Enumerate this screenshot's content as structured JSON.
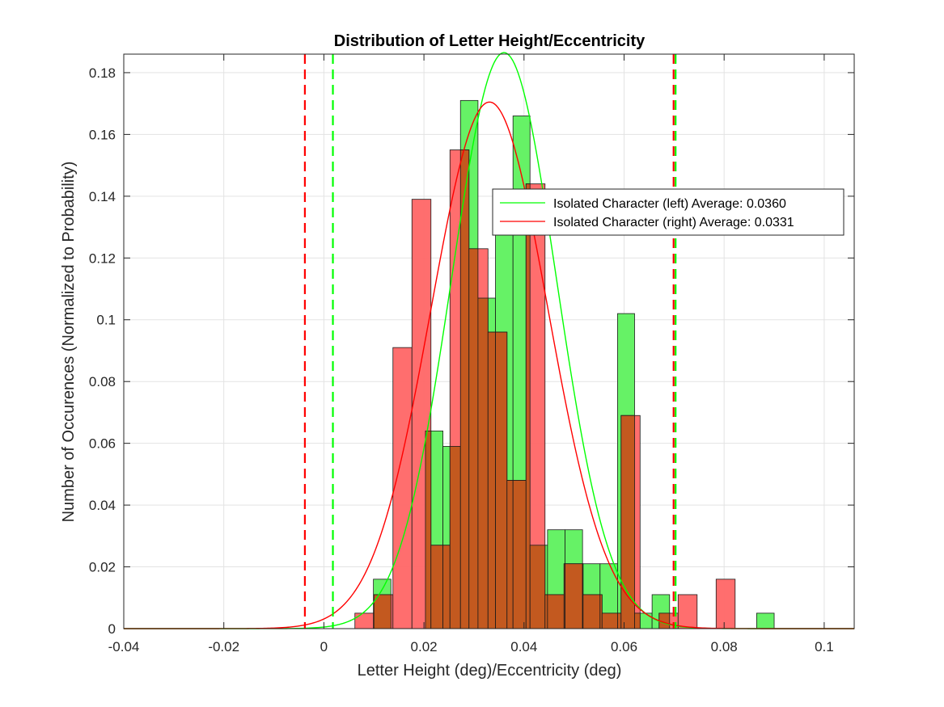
{
  "chart_data": {
    "type": "histogram",
    "title": "Distribution of Letter Height/Eccentricity",
    "xlabel": "Letter Height (deg)/Eccentricity (deg)",
    "ylabel": "Number of Occurences (Normalized to Probability)",
    "xlim": [
      -0.04,
      0.106
    ],
    "ylim": [
      0,
      0.186
    ],
    "xticks": [
      -0.04,
      -0.02,
      0,
      0.02,
      0.04,
      0.06,
      0.08,
      0.1
    ],
    "xtick_labels": [
      "-0.04",
      "-0.02",
      "0",
      "0.02",
      "0.04",
      "0.06",
      "0.08",
      "0.1"
    ],
    "yticks": [
      0,
      0.02,
      0.04,
      0.06,
      0.08,
      0.1,
      0.12,
      0.14,
      0.16,
      0.18
    ],
    "ytick_labels": [
      "0",
      "0.02",
      "0.04",
      "0.06",
      "0.08",
      "0.1",
      "0.12",
      "0.14",
      "0.16",
      "0.18"
    ],
    "grid": true,
    "legend_position": "top-right",
    "series": [
      {
        "name": "Isolated Character (left) Average: 0.0360",
        "color": "#00ff00",
        "bar_fill": "#66f266",
        "mean": 0.036,
        "std": 0.0105,
        "curve_peak": 0.1865,
        "threshold_lines": [
          0.0018,
          0.0703
        ],
        "bins": [
          {
            "x0": 0.0099,
            "x1": 0.0134,
            "v": 0.016
          },
          {
            "x0": 0.0134,
            "x1": 0.0169,
            "v": 0.0
          },
          {
            "x0": 0.0169,
            "x1": 0.0203,
            "v": 0.0
          },
          {
            "x0": 0.0203,
            "x1": 0.0238,
            "v": 0.064
          },
          {
            "x0": 0.0238,
            "x1": 0.0273,
            "v": 0.059
          },
          {
            "x0": 0.0273,
            "x1": 0.0308,
            "v": 0.171
          },
          {
            "x0": 0.0308,
            "x1": 0.0343,
            "v": 0.107
          },
          {
            "x0": 0.0343,
            "x1": 0.0378,
            "v": 0.128
          },
          {
            "x0": 0.0378,
            "x1": 0.0412,
            "v": 0.166
          },
          {
            "x0": 0.0412,
            "x1": 0.0447,
            "v": 0.027
          },
          {
            "x0": 0.0447,
            "x1": 0.0482,
            "v": 0.032
          },
          {
            "x0": 0.0482,
            "x1": 0.0517,
            "v": 0.032
          },
          {
            "x0": 0.0517,
            "x1": 0.0552,
            "v": 0.021
          },
          {
            "x0": 0.0552,
            "x1": 0.0587,
            "v": 0.021
          },
          {
            "x0": 0.0587,
            "x1": 0.0621,
            "v": 0.102
          },
          {
            "x0": 0.0621,
            "x1": 0.0656,
            "v": 0.005
          },
          {
            "x0": 0.0656,
            "x1": 0.0691,
            "v": 0.011
          },
          {
            "x0": 0.0691,
            "x1": 0.0726,
            "v": 0.0
          },
          {
            "x0": 0.0726,
            "x1": 0.0761,
            "v": 0.0
          },
          {
            "x0": 0.0761,
            "x1": 0.0796,
            "v": 0.0
          },
          {
            "x0": 0.0796,
            "x1": 0.083,
            "v": 0.0
          },
          {
            "x0": 0.083,
            "x1": 0.0865,
            "v": 0.0
          },
          {
            "x0": 0.0865,
            "x1": 0.09,
            "v": 0.005
          }
        ]
      },
      {
        "name": "Isolated Character (right) Average: 0.0331",
        "color": "#ff0000",
        "bar_fill": "#ff6666",
        "mean": 0.0331,
        "std": 0.0117,
        "curve_peak": 0.1705,
        "threshold_lines": [
          -0.0038,
          0.0699
        ],
        "bins": [
          {
            "x0": 0.0062,
            "x1": 0.01,
            "v": 0.005
          },
          {
            "x0": 0.01,
            "x1": 0.0138,
            "v": 0.011
          },
          {
            "x0": 0.0138,
            "x1": 0.0176,
            "v": 0.091
          },
          {
            "x0": 0.0176,
            "x1": 0.0214,
            "v": 0.139
          },
          {
            "x0": 0.0214,
            "x1": 0.0252,
            "v": 0.027
          },
          {
            "x0": 0.0252,
            "x1": 0.029,
            "v": 0.155
          },
          {
            "x0": 0.029,
            "x1": 0.0328,
            "v": 0.123
          },
          {
            "x0": 0.0328,
            "x1": 0.0366,
            "v": 0.096
          },
          {
            "x0": 0.0366,
            "x1": 0.0404,
            "v": 0.048
          },
          {
            "x0": 0.0404,
            "x1": 0.0442,
            "v": 0.144
          },
          {
            "x0": 0.0442,
            "x1": 0.048,
            "v": 0.011
          },
          {
            "x0": 0.048,
            "x1": 0.0518,
            "v": 0.021
          },
          {
            "x0": 0.0518,
            "x1": 0.0556,
            "v": 0.011
          },
          {
            "x0": 0.0556,
            "x1": 0.0594,
            "v": 0.005
          },
          {
            "x0": 0.0594,
            "x1": 0.0632,
            "v": 0.069
          },
          {
            "x0": 0.0632,
            "x1": 0.067,
            "v": 0.0
          },
          {
            "x0": 0.067,
            "x1": 0.0708,
            "v": 0.005
          },
          {
            "x0": 0.0708,
            "x1": 0.0746,
            "v": 0.011
          },
          {
            "x0": 0.0746,
            "x1": 0.0784,
            "v": 0.0
          },
          {
            "x0": 0.0784,
            "x1": 0.0822,
            "v": 0.016
          }
        ]
      }
    ],
    "overlap_fill": "#c3591f"
  }
}
